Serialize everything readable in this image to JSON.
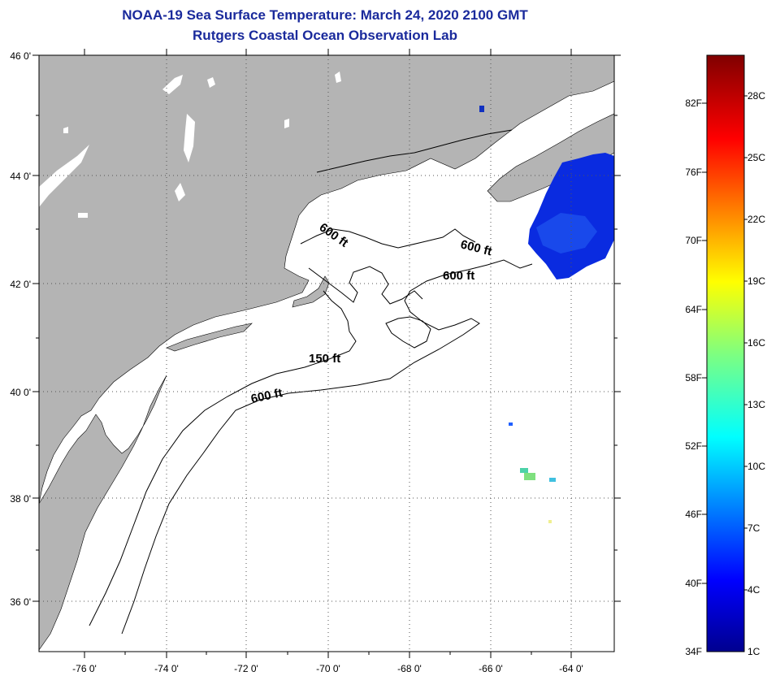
{
  "title": {
    "line1": "NOAA-19 Sea Surface Temperature:  March 24, 2020 2100 GMT",
    "line2": "Rutgers Coastal Ocean Observation Lab"
  },
  "map": {
    "lat_labels": [
      "46 0'",
      "44 0'",
      "42 0'",
      "40 0'",
      "38 0'",
      "36 0'"
    ],
    "lon_labels": [
      "-76 0'",
      "-74 0'",
      "-72 0'",
      "-70 0'",
      "-68 0'",
      "-66 0'",
      "-64 0'"
    ],
    "contour_labels": [
      "600 ft",
      "600 ft",
      "600 ft",
      "150 ft",
      "600 ft"
    ],
    "colors": {
      "land": "#b4b4b4",
      "ocean": "#ffffff",
      "sst_cold": "#0a2be0"
    }
  },
  "colorbar": {
    "fahrenheit": [
      "82F",
      "76F",
      "70F",
      "64F",
      "58F",
      "52F",
      "46F",
      "40F",
      "34F"
    ],
    "celsius": [
      "28C",
      "25C",
      "22C",
      "19C",
      "16C",
      "13C",
      "10C",
      "7C",
      "4C",
      "1C"
    ]
  }
}
